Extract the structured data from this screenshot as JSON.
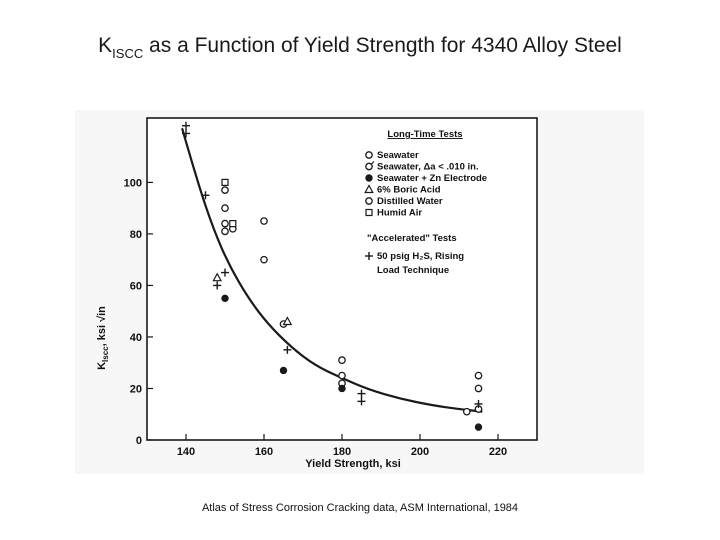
{
  "slide": {
    "title_main": "K",
    "title_sub": "ISCC",
    "title_rest": " as a Function of Yield Strength for 4340 Alloy Steel",
    "caption": "Atlas of Stress Corrosion Cracking data, ASM International, 1984"
  },
  "chart_data": {
    "type": "scatter",
    "title": "",
    "xlabel": "Yield Strength, ksi",
    "ylabel_main": "K",
    "ylabel_sub": "Iscc",
    "ylabel_unit": ", ksi √in",
    "xlim": [
      130,
      230
    ],
    "ylim": [
      0,
      125
    ],
    "x_ticks": [
      140,
      160,
      180,
      200,
      220
    ],
    "y_ticks": [
      0,
      20,
      40,
      60,
      80,
      100
    ],
    "grid": false,
    "legend_position": "top-right",
    "legend": {
      "header_long": "Long-Time Tests",
      "header_accel": "\"Accelerated\" Tests",
      "entries": [
        {
          "label": "Seawater",
          "marker": "open-circle"
        },
        {
          "label": "Seawater, Δa < .010 in.",
          "marker": "ticked-circle"
        },
        {
          "label": "Seawater + Zn Electrode",
          "marker": "filled-circle"
        },
        {
          "label": "6% Boric Acid",
          "marker": "triangle"
        },
        {
          "label": "Distilled Water",
          "marker": "open-circle"
        },
        {
          "label": "Humid Air",
          "marker": "square"
        },
        {
          "label": "50 psig H₂S, Rising",
          "marker": "plus"
        },
        {
          "label": "Load Technique",
          "marker": ""
        }
      ]
    },
    "series": [
      {
        "name": "Seawater",
        "marker": "open-circle",
        "points": [
          [
            150,
            97
          ],
          [
            150,
            90
          ],
          [
            150,
            84
          ],
          [
            150,
            81
          ],
          [
            152,
            82
          ],
          [
            160,
            85
          ],
          [
            160,
            70
          ],
          [
            165,
            45
          ],
          [
            180,
            31
          ],
          [
            180,
            25
          ],
          [
            180,
            22
          ],
          [
            212,
            11
          ],
          [
            215,
            25
          ],
          [
            215,
            20
          ],
          [
            215,
            12
          ]
        ]
      },
      {
        "name": "Seawater + Zn Electrode",
        "marker": "filled-circle",
        "points": [
          [
            150,
            55
          ],
          [
            165,
            27
          ],
          [
            180,
            20
          ],
          [
            215,
            5
          ]
        ]
      },
      {
        "name": "6% Boric Acid",
        "marker": "triangle",
        "points": [
          [
            148,
            63
          ],
          [
            166,
            46
          ]
        ]
      },
      {
        "name": "Humid Air",
        "marker": "square",
        "points": [
          [
            150,
            100
          ],
          [
            152,
            84
          ]
        ]
      },
      {
        "name": "50 psig H₂S, Rising Load Technique",
        "marker": "plus",
        "points": [
          [
            140,
            122
          ],
          [
            140,
            119
          ],
          [
            145,
            95
          ],
          [
            148,
            60
          ],
          [
            150,
            65
          ],
          [
            166,
            35
          ],
          [
            185,
            18
          ],
          [
            185,
            15
          ],
          [
            215,
            14
          ]
        ]
      }
    ],
    "trend_curve": [
      [
        139,
        121
      ],
      [
        143,
        100
      ],
      [
        147,
        82
      ],
      [
        151,
        68
      ],
      [
        156,
        55
      ],
      [
        161,
        45
      ],
      [
        167,
        36
      ],
      [
        173,
        29
      ],
      [
        180,
        24
      ],
      [
        187,
        19.5
      ],
      [
        195,
        16
      ],
      [
        203,
        13.5
      ],
      [
        210,
        12
      ],
      [
        216,
        11
      ]
    ]
  }
}
